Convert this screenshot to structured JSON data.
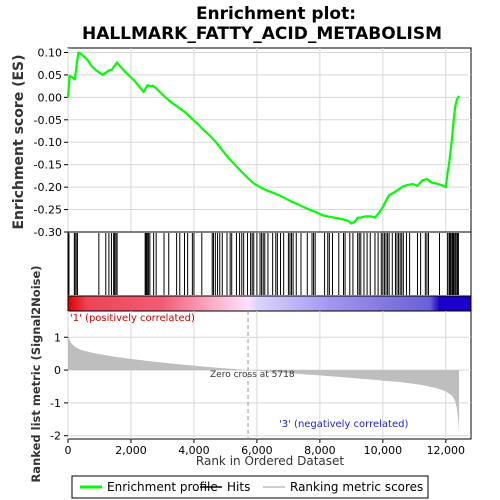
{
  "chart_data": {
    "type": "line",
    "title": "Enrichment plot:",
    "subtitle": "HALLMARK_FATTY_ACID_METABOLISM",
    "top_panel": {
      "ylabel": "Enrichment score (ES)",
      "ylim": [
        -0.3,
        0.11
      ],
      "yticks": [
        0.1,
        0.05,
        0.0,
        -0.05,
        -0.1,
        -0.15,
        -0.2,
        -0.25,
        -0.3
      ],
      "ytick_labels": [
        "0.10",
        "0.05",
        "0.00",
        "-0.05",
        "-0.10",
        "-0.15",
        "-0.20",
        "-0.25",
        "-0.30"
      ],
      "series": [
        {
          "name": "Enrichment profile",
          "color": "#00ff00",
          "x": [
            0,
            50,
            130,
            220,
            280,
            330,
            450,
            600,
            750,
            900,
            1000,
            1100,
            1200,
            1300,
            1400,
            1450,
            1500,
            1560,
            1650,
            1800,
            1950,
            2100,
            2250,
            2400,
            2480,
            2520,
            2600,
            2700,
            2800,
            2950,
            3100,
            3300,
            3500,
            3700,
            3900,
            4100,
            4300,
            4500,
            4700,
            4900,
            5100,
            5300,
            5500,
            5718,
            5900,
            6100,
            6300,
            6500,
            6700,
            6900,
            7100,
            7300,
            7500,
            7700,
            7850,
            8000,
            8150,
            8300,
            8450,
            8600,
            8750,
            8900,
            9000,
            9100,
            9200,
            9300,
            9450,
            9600,
            9750,
            9900,
            10000,
            10100,
            10200,
            10350,
            10500,
            10650,
            10800,
            10950,
            11100,
            11250,
            11400,
            11550,
            11700,
            11850,
            12000,
            12050,
            12100,
            12150,
            12200,
            12250,
            12300,
            12350,
            12420
          ],
          "y": [
            0.0,
            0.048,
            0.045,
            0.04,
            0.075,
            0.1,
            0.095,
            0.085,
            0.07,
            0.06,
            0.055,
            0.05,
            0.055,
            0.06,
            0.062,
            0.068,
            0.072,
            0.078,
            0.07,
            0.058,
            0.048,
            0.038,
            0.025,
            0.012,
            0.022,
            0.027,
            0.025,
            0.026,
            0.02,
            0.01,
            0.0,
            -0.012,
            -0.022,
            -0.032,
            -0.045,
            -0.058,
            -0.072,
            -0.085,
            -0.1,
            -0.118,
            -0.135,
            -0.15,
            -0.165,
            -0.18,
            -0.192,
            -0.2,
            -0.207,
            -0.212,
            -0.218,
            -0.225,
            -0.232,
            -0.238,
            -0.245,
            -0.251,
            -0.255,
            -0.26,
            -0.264,
            -0.266,
            -0.268,
            -0.27,
            -0.272,
            -0.275,
            -0.281,
            -0.278,
            -0.268,
            -0.268,
            -0.265,
            -0.265,
            -0.268,
            -0.255,
            -0.245,
            -0.23,
            -0.218,
            -0.212,
            -0.205,
            -0.198,
            -0.195,
            -0.193,
            -0.197,
            -0.185,
            -0.182,
            -0.19,
            -0.192,
            -0.195,
            -0.2,
            -0.17,
            -0.15,
            -0.12,
            -0.09,
            -0.05,
            -0.02,
            -0.005,
            0.003
          ]
        }
      ]
    },
    "hits": [
      30,
      200,
      230,
      280,
      300,
      980,
      1200,
      1300,
      1380,
      1450,
      1480,
      1520,
      1560,
      2450,
      2480,
      2500,
      2520,
      2560,
      2600,
      2720,
      2800,
      3050,
      3200,
      3450,
      3550,
      3700,
      3800,
      3950,
      4000,
      4250,
      4580,
      4620,
      4680,
      4750,
      4820,
      4900,
      5050,
      5150,
      5200,
      5350,
      5450,
      5520,
      5580,
      5700,
      5800,
      5850,
      5900,
      6000,
      6100,
      6150,
      6200,
      6250,
      6350,
      6500,
      6600,
      6650,
      6750,
      6850,
      7000,
      7050,
      7100,
      7150,
      7250,
      7400,
      7600,
      7750,
      7800,
      7850,
      8150,
      8250,
      8300,
      8400,
      8600,
      8750,
      8800,
      8950,
      9050,
      9200,
      9250,
      9300,
      9400,
      9500,
      9600,
      9750,
      9850,
      9950,
      10000,
      10050,
      10100,
      10150,
      10200,
      10300,
      10400,
      10450,
      10500,
      10550,
      10600,
      10650,
      10750,
      10850,
      11100,
      11200,
      11350,
      11400,
      11450,
      11800,
      12050,
      12100,
      12130,
      12160,
      12200,
      12230,
      12260,
      12300,
      12330,
      12370,
      12400
    ],
    "heatmap_stops": [
      {
        "x": 0,
        "color": "#dd0000"
      },
      {
        "x": 600,
        "color": "#ee4455"
      },
      {
        "x": 3000,
        "color": "#f05d75"
      },
      {
        "x": 4300,
        "color": "#f8a0b8"
      },
      {
        "x": 5718,
        "color": "#ffe0ff"
      },
      {
        "x": 6000,
        "color": "#ddd4ff"
      },
      {
        "x": 8300,
        "color": "#a098f0"
      },
      {
        "x": 11500,
        "color": "#6a5fd8"
      },
      {
        "x": 11800,
        "color": "#1a00c8"
      },
      {
        "x": 12420,
        "color": "#1a00c8"
      }
    ],
    "pos_label": "'1' (positively correlated)",
    "neg_label": "'3' (negatively correlated)",
    "zero_cross_label": "Zero cross at 5718",
    "zero_cross": 5718,
    "bottom_panel": {
      "ylabel": "Ranked list metric (Signal2Noise)",
      "ylim": [
        -2.1,
        1.8
      ],
      "yticks": [
        1,
        0,
        -1,
        -2
      ],
      "ytick_labels": [
        "1",
        "0",
        "-1",
        "-2"
      ],
      "metric_x": [
        0,
        20,
        80,
        200,
        400,
        800,
        1500,
        2500,
        3500,
        4500,
        5718,
        6500,
        7500,
        8500,
        9500,
        10500,
        11200,
        11700,
        12000,
        12200,
        12300,
        12360,
        12400,
        12420
      ],
      "metric_y": [
        1.45,
        1.0,
        0.85,
        0.72,
        0.62,
        0.52,
        0.4,
        0.28,
        0.18,
        0.09,
        0.0,
        -0.06,
        -0.13,
        -0.2,
        -0.28,
        -0.36,
        -0.45,
        -0.55,
        -0.65,
        -0.78,
        -0.95,
        -1.2,
        -1.6,
        -1.9
      ],
      "fill_color": "#bebebe"
    },
    "xaxis": {
      "label": "Rank in Ordered Dataset",
      "xlim": [
        0,
        12800
      ],
      "ticks": [
        0,
        2000,
        4000,
        6000,
        8000,
        10000,
        12000
      ],
      "tick_labels": [
        "0",
        "2,000",
        "4,000",
        "6,000",
        "8,000",
        "10,000",
        "12,000"
      ]
    },
    "legend": {
      "placement": "bottom",
      "items": [
        {
          "label": "Enrichment profile",
          "color": "#00ff00",
          "kind": "thick-line"
        },
        {
          "label": "Hits",
          "color": "#000000",
          "kind": "line"
        },
        {
          "label": "Ranking metric scores",
          "color": "#bebebe",
          "kind": "line"
        }
      ]
    }
  }
}
